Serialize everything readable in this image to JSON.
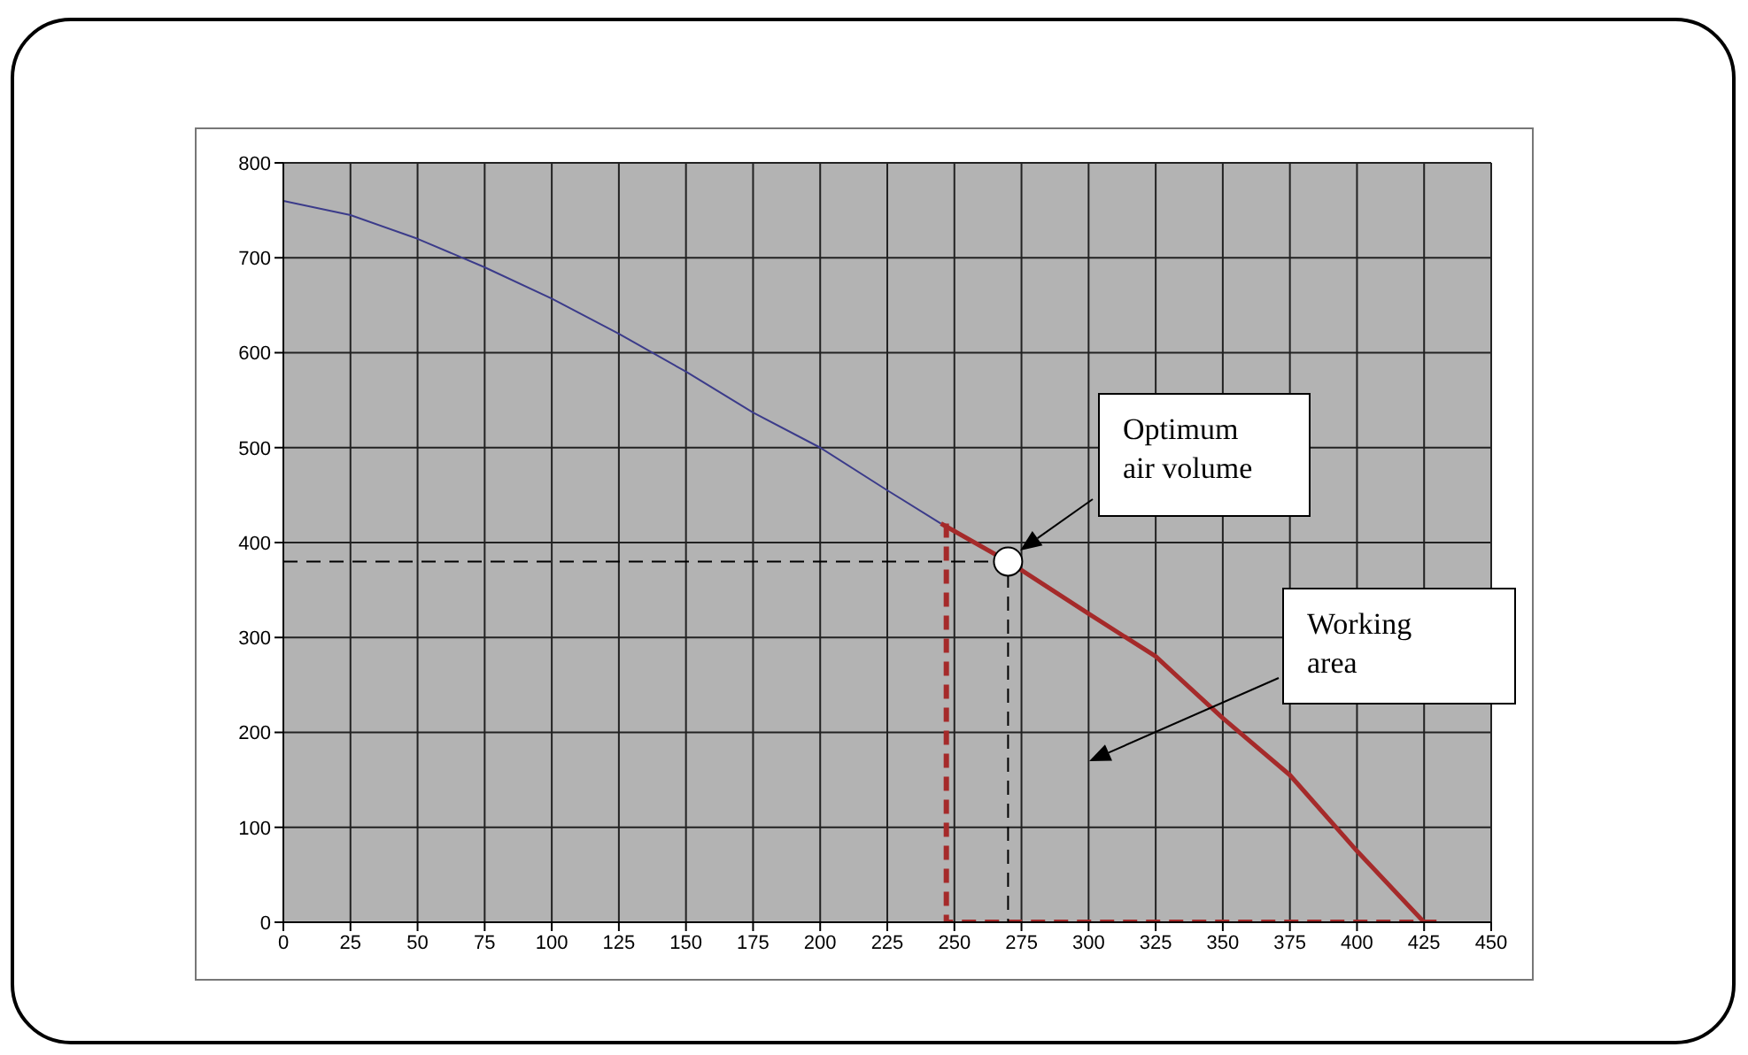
{
  "chart_data": {
    "type": "line",
    "xlim": [
      0,
      450
    ],
    "xticks": [
      0,
      25,
      50,
      75,
      100,
      125,
      150,
      175,
      200,
      225,
      250,
      275,
      300,
      325,
      350,
      375,
      400,
      425,
      450
    ],
    "ylim": [
      0,
      800
    ],
    "yticks": [
      0,
      100,
      200,
      300,
      400,
      500,
      600,
      700,
      800
    ],
    "grid": true,
    "series": [
      {
        "type": "line",
        "color": "#3b3b8a",
        "line_style": "solid",
        "marker": "none",
        "x": [
          0,
          25,
          50,
          75,
          100,
          125,
          150,
          175,
          200,
          225,
          245
        ],
        "values": [
          760,
          745,
          720,
          690,
          657,
          620,
          580,
          537,
          500,
          455,
          420
        ]
      },
      {
        "type": "line",
        "color": "#a52a2a",
        "line_style": "solid",
        "marker": "none",
        "x": [
          245,
          270,
          300,
          325,
          350,
          375,
          400,
          425
        ],
        "values": [
          420,
          380,
          325,
          280,
          215,
          155,
          75,
          0
        ]
      },
      {
        "type": "line",
        "color": "#a52a2a",
        "line_style": "dashed",
        "marker": "none",
        "x": [
          247,
          247,
          430
        ],
        "values": [
          420,
          0,
          0
        ]
      },
      {
        "type": "line",
        "color": "#000000",
        "line_style": "dashed",
        "marker": "none",
        "x": [
          0,
          270,
          270
        ],
        "values": [
          380,
          380,
          0
        ]
      },
      {
        "type": "scatter",
        "color": "#ffffff",
        "marker": "circle",
        "x": [
          270
        ],
        "values": [
          380
        ]
      }
    ],
    "annotations": [
      "Optimum air volume",
      "Working area"
    ]
  }
}
